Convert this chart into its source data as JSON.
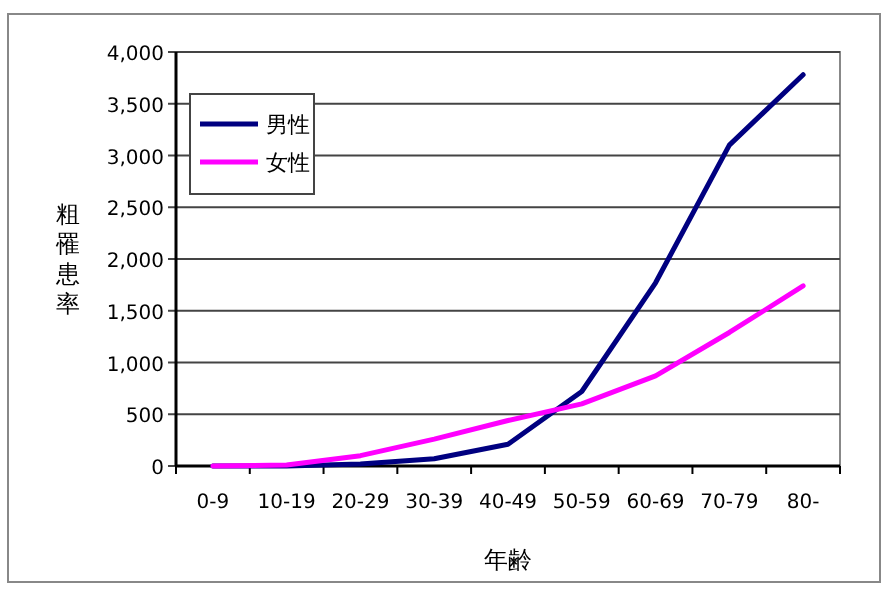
{
  "chart_data": {
    "type": "line",
    "xlabel": "年齢",
    "ylabel": "粗罹患率",
    "categories": [
      "0-9",
      "10-19",
      "20-29",
      "30-39",
      "40-49",
      "50-59",
      "60-69",
      "70-79",
      "80-"
    ],
    "series": [
      {
        "name": "男性",
        "color": "#000080",
        "values": [
          0,
          0,
          20,
          70,
          210,
          720,
          1770,
          3100,
          3780
        ]
      },
      {
        "name": "女性",
        "color": "#ff00ff",
        "values": [
          0,
          10,
          100,
          260,
          440,
          600,
          870,
          1290,
          1740
        ]
      }
    ],
    "ylim": [
      0,
      4000
    ],
    "yticks": [
      {
        "value": 0,
        "label": "0"
      },
      {
        "value": 500,
        "label": "500"
      },
      {
        "value": 1000,
        "label": "1,000"
      },
      {
        "value": 1500,
        "label": "1,500"
      },
      {
        "value": 2000,
        "label": "2,000"
      },
      {
        "value": 2500,
        "label": "2,500"
      },
      {
        "value": 3000,
        "label": "3,000"
      },
      {
        "value": 3500,
        "label": "3,500"
      },
      {
        "value": 4000,
        "label": "4,000"
      }
    ],
    "grid": "y",
    "legend": "top left",
    "marker": "none",
    "line_style": "solid"
  }
}
